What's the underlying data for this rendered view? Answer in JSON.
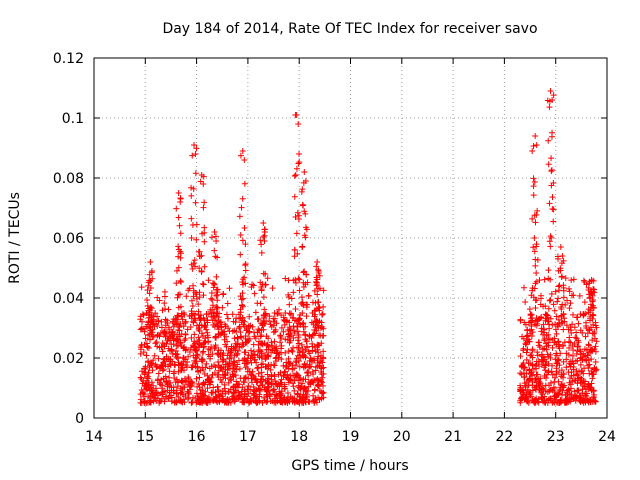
{
  "chart_data": {
    "type": "scatter",
    "title": "Day 184 of 2014, Rate Of TEC Index for receiver savo",
    "xlabel": "GPS time / hours",
    "ylabel": "ROTI / TECUs",
    "xlim": [
      14,
      24
    ],
    "ylim": [
      0,
      0.12
    ],
    "xticks": [
      14,
      15,
      16,
      17,
      18,
      19,
      20,
      21,
      22,
      23,
      24
    ],
    "yticks": [
      0,
      0.02,
      0.04,
      0.06,
      0.08,
      0.1,
      0.12
    ],
    "ytick_labels": [
      "0",
      "0.02",
      "0.04",
      "0.06",
      "0.08",
      "0.1",
      "0.12"
    ],
    "grid": true,
    "marker": "+",
    "series_color": "#ff0000",
    "series": [
      {
        "name": "ROTI",
        "segments": [
          {
            "x_start": 14.9,
            "x_end": 18.48,
            "typical_range": [
              0.005,
              0.035
            ]
          },
          {
            "x_start": 22.3,
            "x_end": 23.8,
            "typical_range": [
              0.005,
              0.035
            ]
          }
        ],
        "peaks": [
          {
            "x": 15.1,
            "y": 0.052
          },
          {
            "x": 15.65,
            "y": 0.075
          },
          {
            "x": 15.95,
            "y": 0.091
          },
          {
            "x": 16.1,
            "y": 0.081
          },
          {
            "x": 16.35,
            "y": 0.062
          },
          {
            "x": 16.9,
            "y": 0.089
          },
          {
            "x": 17.3,
            "y": 0.065
          },
          {
            "x": 17.95,
            "y": 0.101
          },
          {
            "x": 18.1,
            "y": 0.082
          },
          {
            "x": 18.35,
            "y": 0.052
          },
          {
            "x": 22.6,
            "y": 0.094
          },
          {
            "x": 22.9,
            "y": 0.109
          },
          {
            "x": 23.1,
            "y": 0.057
          },
          {
            "x": 23.7,
            "y": 0.046
          }
        ]
      }
    ]
  }
}
